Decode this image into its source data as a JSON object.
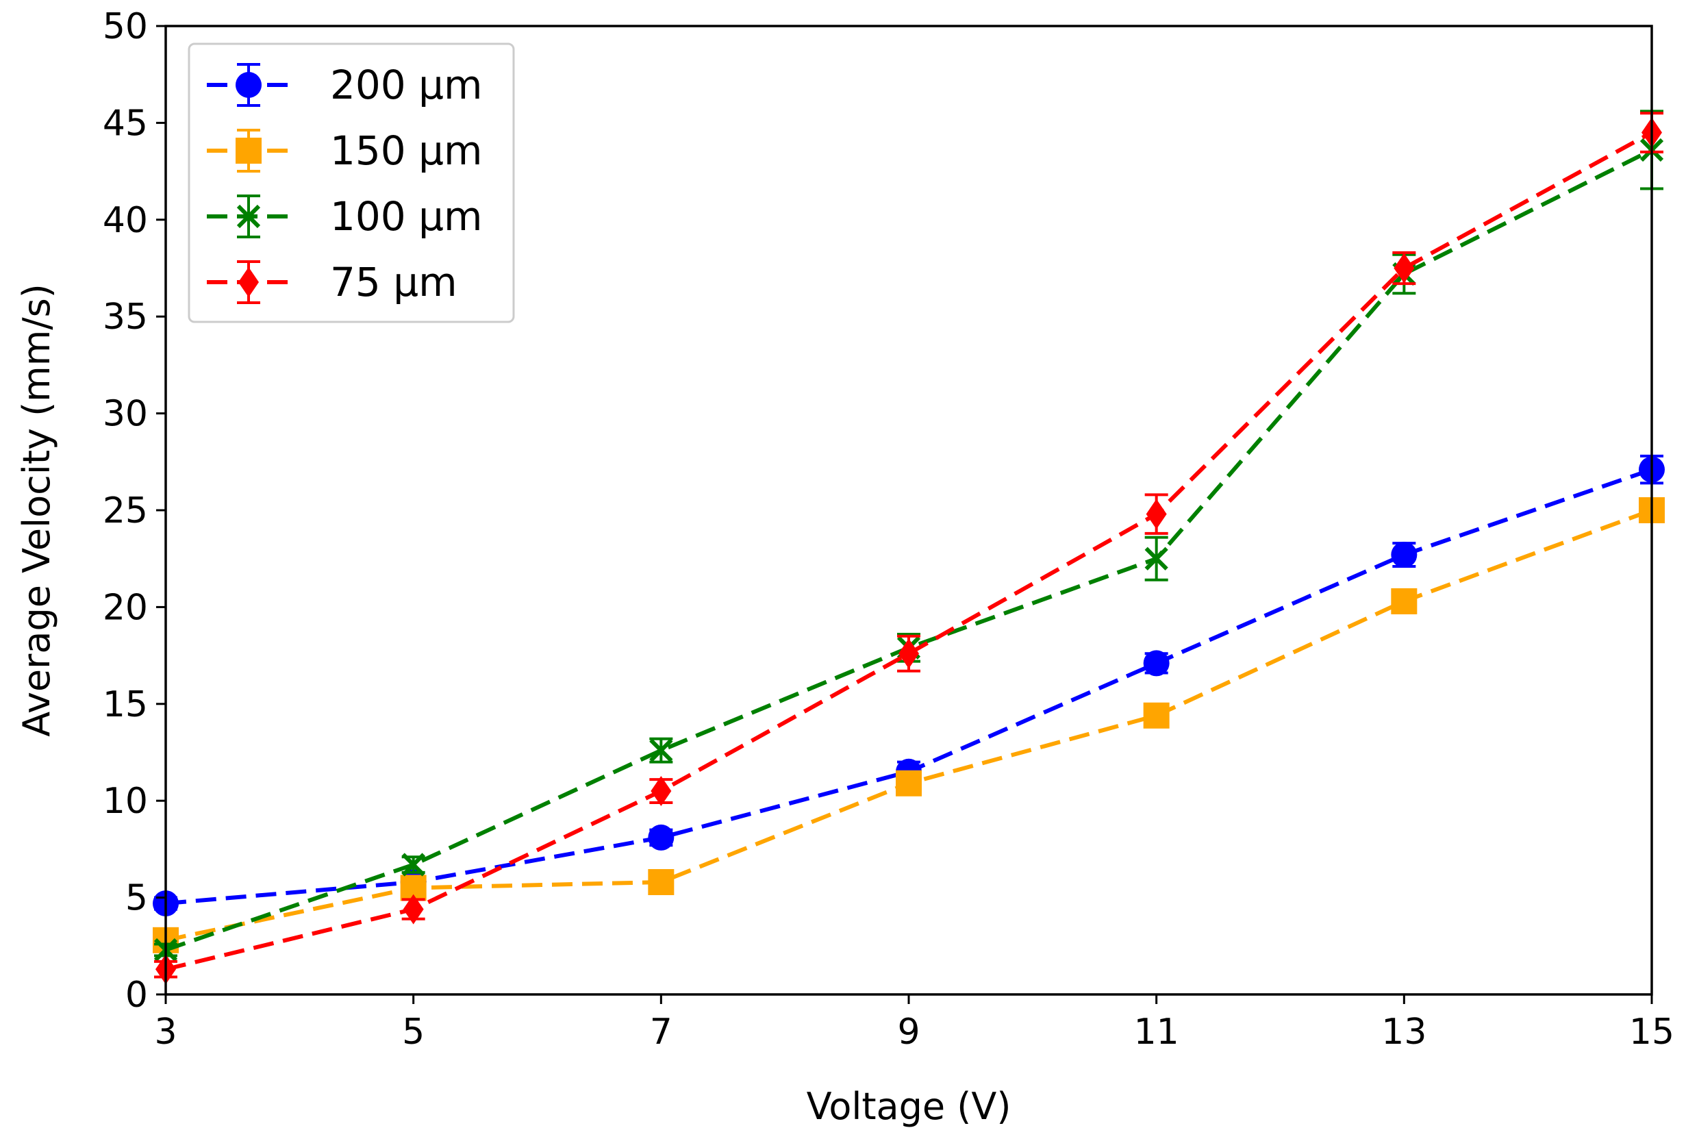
{
  "chart_data": {
    "type": "line",
    "title": "",
    "xlabel": "Voltage (V)",
    "ylabel": "Average Velocity (mm/s)",
    "xlim": [
      3,
      15
    ],
    "ylim": [
      0,
      50
    ],
    "xticks": [
      "3",
      "5",
      "7",
      "9",
      "11",
      "13",
      "15"
    ],
    "yticks": [
      "0",
      "5",
      "10",
      "15",
      "20",
      "25",
      "30",
      "35",
      "40",
      "45",
      "50"
    ],
    "x": [
      3,
      5,
      7,
      9,
      11,
      13,
      15
    ],
    "grid": false,
    "legend_position": "top-left",
    "series": [
      {
        "name": "200 μm",
        "color": "#0000ff",
        "marker": "circle",
        "values": [
          4.7,
          5.8,
          8.1,
          11.5,
          17.1,
          22.7,
          27.1
        ],
        "errors": [
          0.3,
          0.3,
          0.4,
          0.5,
          0.5,
          0.6,
          0.7
        ]
      },
      {
        "name": "150 μm",
        "color": "#ffa500",
        "marker": "square",
        "values": [
          2.8,
          5.5,
          5.8,
          10.9,
          14.4,
          20.3,
          25.0
        ],
        "errors": [
          0.3,
          0.3,
          0.4,
          0.4,
          0.5,
          0.6,
          0.6
        ]
      },
      {
        "name": "100 μm",
        "color": "#008000",
        "marker": "x",
        "values": [
          2.3,
          6.7,
          12.6,
          17.9,
          22.5,
          37.2,
          43.6
        ],
        "errors": [
          0.3,
          0.4,
          0.6,
          0.7,
          1.1,
          1.0,
          2.0
        ]
      },
      {
        "name": "75 μm",
        "color": "#ff0000",
        "marker": "diamond",
        "values": [
          1.3,
          4.4,
          10.5,
          17.6,
          24.8,
          37.5,
          44.5
        ],
        "errors": [
          0.4,
          0.5,
          0.6,
          0.9,
          1.0,
          0.8,
          1.0
        ]
      }
    ]
  }
}
